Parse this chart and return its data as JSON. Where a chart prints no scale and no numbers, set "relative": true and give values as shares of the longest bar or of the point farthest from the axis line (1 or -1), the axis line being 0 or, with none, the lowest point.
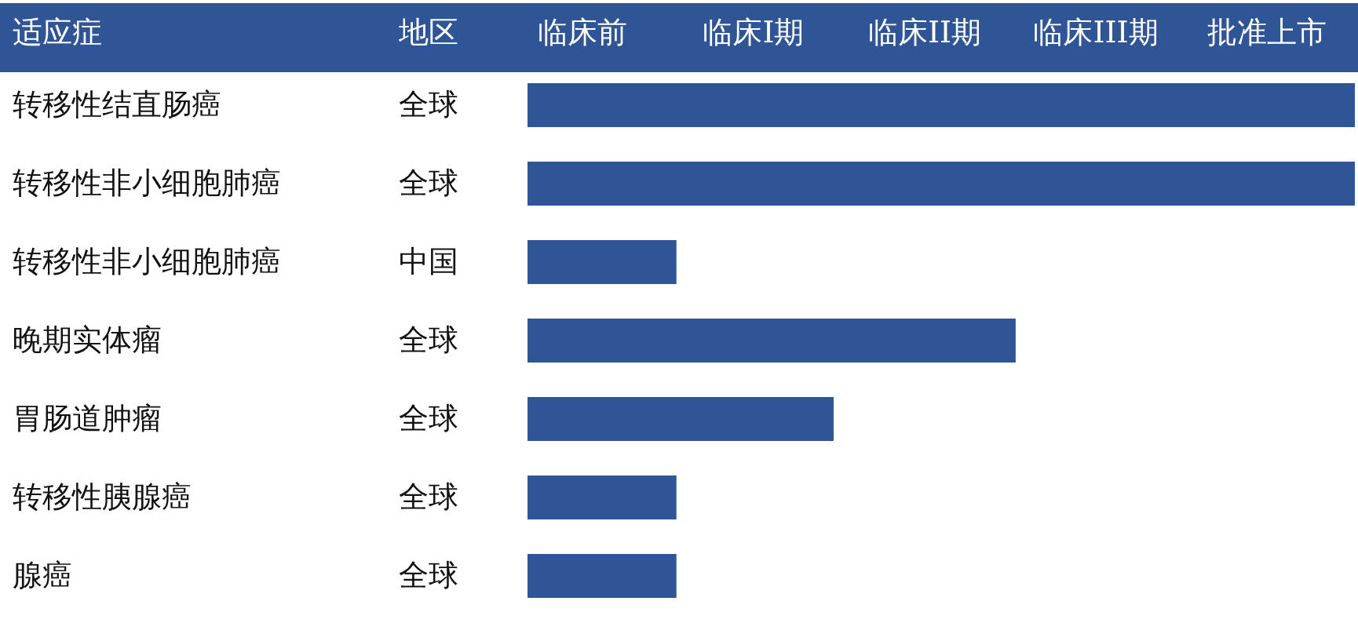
{
  "chart_data": {
    "type": "bar",
    "orientation": "horizontal",
    "relative": true,
    "ylabel": "适应症",
    "y2label": "地区",
    "categories": [
      "转移性结直肠癌",
      "转移性非小细胞肺癌",
      "转移性非小细胞肺癌",
      "晚期实体瘤",
      "胃肠道肿瘤",
      "转移性胰腺癌",
      "腺癌"
    ],
    "y2_categories": [
      "全球",
      "全球",
      "中国",
      "全球",
      "全球",
      "全球",
      "全球"
    ],
    "values": [
      1,
      1,
      0.18,
      0.59,
      0.37,
      0.18,
      0.18
    ],
    "color": "#2f5597",
    "annotations": [
      "临床前",
      "临床I期",
      "临床II期",
      "临床III期",
      "批准上市"
    ]
  }
}
